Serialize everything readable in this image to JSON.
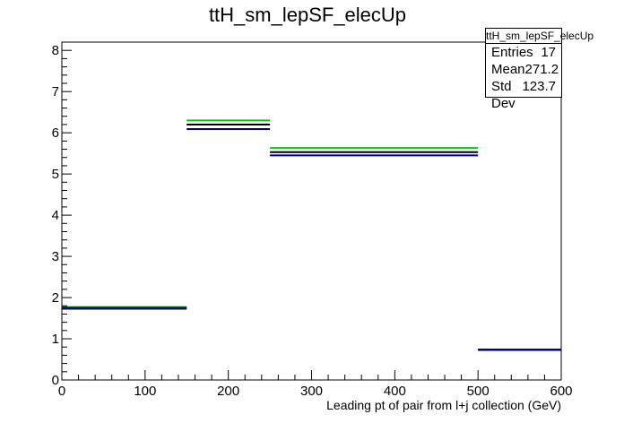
{
  "chart_data": {
    "type": "histogram",
    "title": "ttH_sm_lepSF_elecUp",
    "xlabel": "Leading pt of pair from l+j collection (GeV)",
    "ylabel": "",
    "xlim": [
      0,
      600
    ],
    "ylim": [
      0,
      8.2
    ],
    "x_ticks": [
      "0",
      "100",
      "200",
      "300",
      "400",
      "500",
      "600"
    ],
    "y_ticks": [
      "0",
      "1",
      "2",
      "3",
      "4",
      "5",
      "6",
      "7",
      "8"
    ],
    "bin_edges": [
      0,
      150,
      250,
      500,
      600
    ],
    "series": [
      {
        "color": "#00cc00",
        "values": [
          1.77,
          6.3,
          5.63,
          0.74
        ]
      },
      {
        "color": "#000000",
        "values": [
          1.75,
          6.2,
          5.53,
          0.73
        ]
      },
      {
        "color": "#000099",
        "values": [
          1.73,
          6.09,
          5.45,
          0.74
        ]
      }
    ],
    "stats": {
      "title": "ttH_sm_lepSF_elecUp",
      "rows": [
        {
          "label": "Entries",
          "value": "17"
        },
        {
          "label": "Mean",
          "value": "271.2"
        },
        {
          "label": "Std Dev",
          "value": "123.7"
        }
      ]
    }
  }
}
